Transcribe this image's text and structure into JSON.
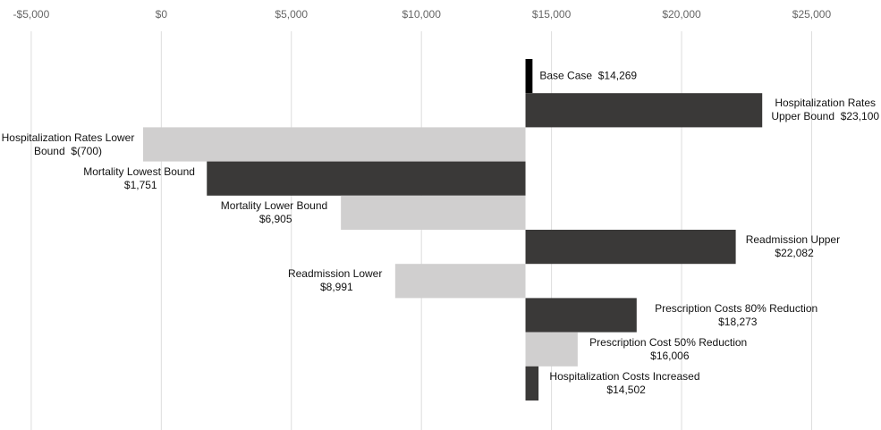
{
  "chart_data": {
    "type": "floating-bar",
    "orientation": "horizontal",
    "baseline": 14000,
    "categories": [
      "Base Case",
      "Hospitalization Rates Upper Bound",
      "Hospitalization Rates Lower Bound",
      "Mortality Lowest Bound",
      "Mortality Lower Bound",
      "Readmission Upper",
      "Readmission Lower",
      "Prescription Costs 80% Reduction",
      "Prescription Cost 50% Reduction",
      "Hospitalization Costs Increased"
    ],
    "values": [
      14269,
      23100,
      -700,
      1751,
      6905,
      22082,
      8991,
      18273,
      16006,
      14502
    ],
    "value_labels": [
      "$14,269",
      "$23,100",
      "$(700)",
      "$1,751",
      "$6,905",
      "$22,082",
      "$8,991",
      "$18,273",
      "$16,006",
      "$14,502"
    ],
    "colors": [
      "#000000",
      "#3a3938",
      "#d0cfcf",
      "#3a3938",
      "#d0cfcf",
      "#3a3938",
      "#d0cfcf",
      "#3a3938",
      "#d0cfcf",
      "#3a3938"
    ],
    "xlim": [
      -6200,
      27150
    ],
    "xticks": [
      {
        "value": -5000,
        "label": "-$5,000"
      },
      {
        "value": 0,
        "label": "$0"
      },
      {
        "value": 5000,
        "label": "$5,000"
      },
      {
        "value": 10000,
        "label": "$10,000"
      },
      {
        "value": 15000,
        "label": "$15,000"
      },
      {
        "value": 20000,
        "label": "$20,000"
      },
      {
        "value": 25000,
        "label": "$25,000"
      }
    ],
    "grid": true
  }
}
